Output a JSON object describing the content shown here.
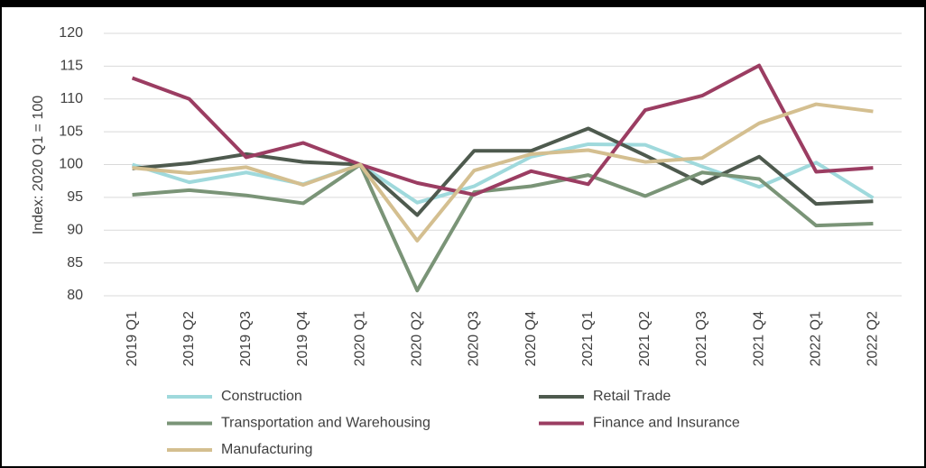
{
  "chart_data": {
    "type": "line",
    "y_label": "Index: 2020 Q1  = 100",
    "categories": [
      "2019 Q1",
      "2019 Q2",
      "2019 Q3",
      "2019 Q4",
      "2020 Q1",
      "2020 Q2",
      "2020 Q3",
      "2020 Q4",
      "2021 Q1",
      "2021 Q2",
      "2021 Q3",
      "2021 Q4",
      "2022 Q1",
      "2022 Q2"
    ],
    "series": [
      {
        "name": "Construction",
        "color": "#9fd9dc",
        "values": [
          100,
          97.3,
          98.8,
          97,
          100,
          94.2,
          96.7,
          101.2,
          103.1,
          103,
          99.7,
          96.6,
          100.3,
          94.9
        ]
      },
      {
        "name": "Retail Trade",
        "color": "#4e5a4e",
        "values": [
          99.4,
          100.2,
          101.6,
          100.4,
          100,
          92.3,
          102.1,
          102.1,
          105.5,
          101.4,
          97.1,
          101.2,
          94,
          94.4
        ]
      },
      {
        "name": "Transportation and Warehousing",
        "color": "#7a9477",
        "values": [
          95.4,
          96.1,
          95.3,
          94.1,
          100,
          80.8,
          95.8,
          96.7,
          98.4,
          95.2,
          98.8,
          97.8,
          90.7,
          91
        ]
      },
      {
        "name": "Finance and Insurance",
        "color": "#9b3d62",
        "values": [
          113.2,
          110,
          101.1,
          103.3,
          100,
          97.2,
          95.4,
          99,
          97,
          108.3,
          110.5,
          115.1,
          98.9,
          99.5
        ]
      },
      {
        "name": "Manufacturing",
        "color": "#d4bf90",
        "values": [
          99.5,
          98.7,
          99.6,
          96.9,
          100,
          88.4,
          99.1,
          101.6,
          102.2,
          100.4,
          101,
          106.3,
          109.2,
          108.1
        ]
      }
    ],
    "ylim": [
      80,
      120
    ],
    "yticks": [
      80,
      85,
      90,
      95,
      100,
      105,
      110,
      115,
      120
    ],
    "grid": true
  }
}
